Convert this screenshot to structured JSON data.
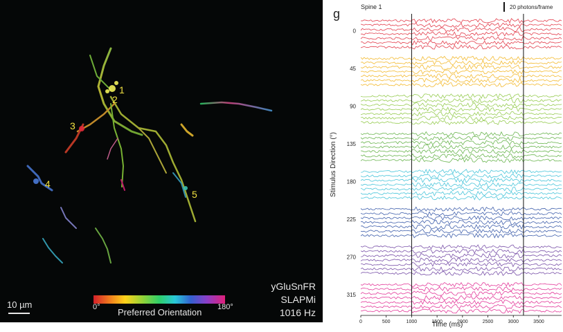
{
  "image_panel": {
    "markers": [
      "1",
      "2",
      "3",
      "4",
      "5"
    ],
    "scalebar_label": "10 µm",
    "colorbar": {
      "min_label": "0°",
      "max_label": "180°",
      "title": "Preferred Orientation"
    },
    "info_lines": [
      "yGluSnFR",
      "SLAPMi",
      "1016 Hz"
    ]
  },
  "chart_data": {
    "type": "line",
    "panel_label": "g",
    "title": "Spine 1",
    "scale_label": "20 photons/frame",
    "xlabel": "Time (ms)",
    "ylabel": "Stimulus Direction (°)",
    "xlim": [
      0,
      3950
    ],
    "x_ticks": [
      0,
      500,
      1000,
      1500,
      2000,
      2500,
      3000,
      3500
    ],
    "stimulus_lines_ms": [
      1000,
      3200
    ],
    "series": [
      {
        "direction": "0",
        "color": "#e02a3a",
        "trials": 7
      },
      {
        "direction": "45",
        "color": "#f2b21a",
        "trials": 7
      },
      {
        "direction": "90",
        "color": "#8cc63f",
        "trials": 7
      },
      {
        "direction": "135",
        "color": "#5aad3c",
        "trials": 7
      },
      {
        "direction": "180",
        "color": "#35bfd6",
        "trials": 7
      },
      {
        "direction": "225",
        "color": "#2b4fa3",
        "trials": 7
      },
      {
        "direction": "270",
        "color": "#6b3fa0",
        "trials": 7
      },
      {
        "direction": "315",
        "color": "#e0258f",
        "trials": 7
      }
    ],
    "grid": false
  }
}
